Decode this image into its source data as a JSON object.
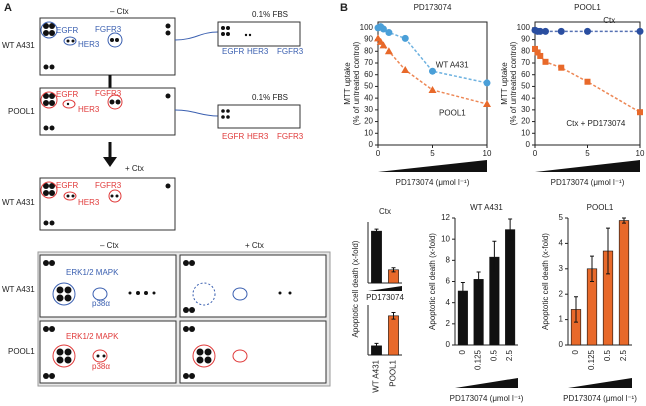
{
  "panel_a": {
    "label": "A",
    "arrays": [
      {
        "condition": "– Ctx",
        "cell_line": "WT A431",
        "targets": [
          "EGFR",
          "HER3",
          "FGFR3"
        ],
        "inset": {
          "title": "0.1% FBS",
          "targets": [
            "EGFR",
            "HER3",
            "FGFR3"
          ]
        }
      },
      {
        "cell_line": "POOL1",
        "targets": [
          "EGFR",
          "HER3",
          "FGFR3"
        ],
        "inset": {
          "title": "0.1% FBS",
          "targets": [
            "EGFR",
            "HER3",
            "FGFR3"
          ]
        }
      },
      {
        "condition": "+ Ctx",
        "cell_line": "WT A431",
        "targets": [
          "EGFR",
          "HER3",
          "FGFR3"
        ]
      }
    ],
    "kinase_arrays": {
      "columns": [
        "– Ctx",
        "+ Ctx"
      ],
      "rows": [
        {
          "cell_line": "WT A431",
          "targets": [
            "ERK1/2 MAPK",
            "p38α"
          ]
        },
        {
          "cell_line": "POOL1",
          "targets": [
            "ERK1/2 MAPK",
            "p38α"
          ]
        }
      ]
    }
  },
  "panel_b_label": "B",
  "chart_data": [
    {
      "type": "line",
      "title": "PD173074",
      "ylabel": [
        "MTT uptake",
        "(% of untreated control)"
      ],
      "xlabel": "PD173074 (μmol l⁻¹)",
      "x": [
        0,
        0.25,
        0.5,
        1,
        2.5,
        5,
        10
      ],
      "xlim": [
        0,
        10
      ],
      "xticks": [
        0,
        5,
        10
      ],
      "ylim": [
        0,
        105
      ],
      "yticks": [
        0,
        10,
        20,
        30,
        40,
        50,
        60,
        70,
        80,
        90,
        100
      ],
      "series": [
        {
          "name": "WT A431",
          "color": "#4a9fd8",
          "marker": "circle",
          "values": [
            100,
            101,
            99,
            96,
            91,
            63,
            53
          ]
        },
        {
          "name": "POOL1",
          "color": "#e8692a",
          "marker": "triangle",
          "values": [
            91,
            88,
            85,
            80,
            64,
            47,
            35
          ]
        }
      ]
    },
    {
      "type": "line",
      "title": "POOL1",
      "ylabel": [
        "MTT uptake",
        "(% of untreated control)"
      ],
      "xlabel": "PD173074 (μmol l⁻¹)",
      "x": [
        0,
        0.25,
        0.5,
        1,
        2.5,
        5,
        10
      ],
      "xlim": [
        0,
        10
      ],
      "xticks": [
        0,
        5,
        10
      ],
      "ylim": [
        0,
        105
      ],
      "yticks": [
        0,
        10,
        20,
        30,
        40,
        50,
        60,
        70,
        80,
        90,
        100
      ],
      "series": [
        {
          "name": "Ctx",
          "color": "#2a4ea0",
          "marker": "circle",
          "values": [
            98,
            97,
            97,
            97,
            97,
            97,
            97
          ]
        },
        {
          "name": "Ctx + PD173074",
          "color": "#e8692a",
          "marker": "square",
          "values": [
            82,
            79,
            76,
            71,
            66,
            54,
            28
          ]
        }
      ]
    },
    {
      "type": "bar",
      "title": "Ctx",
      "ylabel": "Apoptotic cell death (x-fold)",
      "xlabel": "PD173074",
      "categories": [
        null,
        null
      ],
      "values": [
        5.1,
        1.3
      ],
      "errors": [
        0.2,
        0.2
      ],
      "colors": [
        "#111111",
        "#e8692a"
      ],
      "ylim": [
        0,
        6
      ]
    },
    {
      "type": "bar",
      "categories": [
        "WT A431",
        "POOL1"
      ],
      "values": [
        1.1,
        4.7
      ],
      "errors": [
        0.3,
        0.4
      ],
      "colors": [
        "#111111",
        "#e8692a"
      ],
      "ylim": [
        0,
        6
      ]
    },
    {
      "type": "bar",
      "title": "WT A431",
      "ylabel": "Apoptotic cell death (x-fold)",
      "xlabel": "PD173074 (μmol l⁻¹)",
      "categories": [
        "0",
        "0.125",
        "0.5",
        "2.5"
      ],
      "values": [
        5.1,
        6.2,
        8.3,
        10.9
      ],
      "errors": [
        0.8,
        0.7,
        1.5,
        1.0
      ],
      "color": "#111111",
      "ylim": [
        0,
        12
      ],
      "yticks": [
        0,
        2,
        4,
        6,
        8,
        10,
        12
      ]
    },
    {
      "type": "bar",
      "title": "POOL1",
      "ylabel": "Apoptotic cell death (x-fold)",
      "xlabel": "PD173074 (μmol l⁻¹)",
      "categories": [
        "0",
        "0.125",
        "0.5",
        "2.5"
      ],
      "values": [
        1.4,
        3.0,
        3.7,
        4.9
      ],
      "errors": [
        0.5,
        0.5,
        0.9,
        0.1
      ],
      "color": "#e8692a",
      "ylim": [
        0,
        5
      ],
      "yticks": [
        0,
        1,
        2,
        3,
        4,
        5
      ]
    }
  ]
}
